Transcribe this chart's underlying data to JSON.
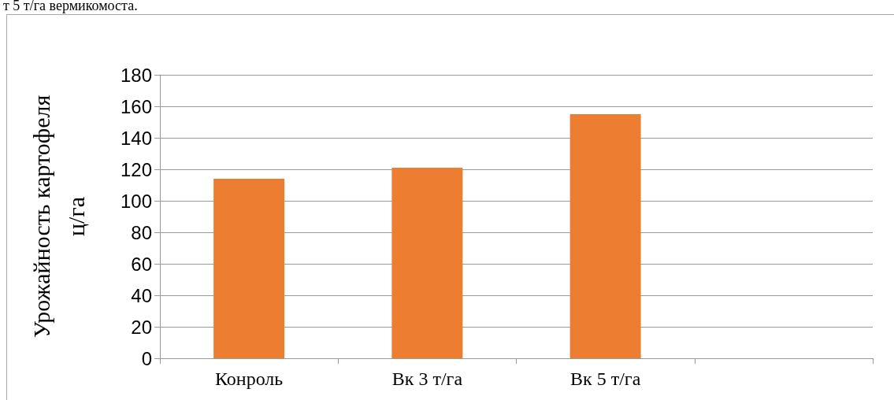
{
  "chart_data": {
    "type": "bar",
    "ylabel": "Урожайность картофеля\nц/га",
    "categories": [
      "Конроль",
      "Вк 3 т/га",
      "Вк 5 т/га",
      null
    ],
    "values": [
      114,
      121,
      155,
      null
    ],
    "color": "#ed7d31",
    "ylim": [
      0,
      180
    ],
    "yticks": [
      0,
      20,
      40,
      60,
      80,
      100,
      120,
      140,
      160,
      180
    ],
    "grid": "y",
    "annotations": [
      "т 5 т/га вермикомоста."
    ]
  }
}
